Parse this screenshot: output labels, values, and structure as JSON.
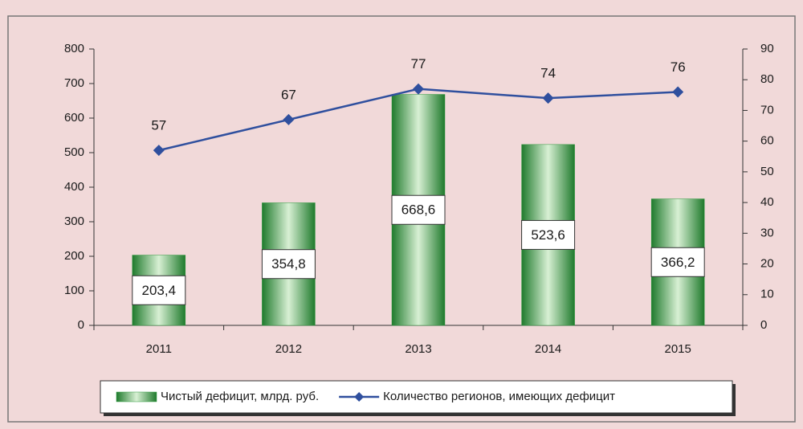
{
  "chart_data": {
    "type": "bar-line",
    "categories": [
      "2011",
      "2012",
      "2013",
      "2014",
      "2015"
    ],
    "series": [
      {
        "name": "Чистый дефицит, млрд. руб.",
        "type": "bar",
        "color": "#2e9a3e",
        "values": [
          203.4,
          354.8,
          668.6,
          523.6,
          366.2
        ],
        "value_labels": [
          "203,4",
          "354,8",
          "668,6",
          "523,6",
          "366,2"
        ]
      },
      {
        "name": "Количество регионов, имеющих дефицит",
        "type": "line",
        "axis": "y2",
        "color": "#2f4f9e",
        "values": [
          57,
          67,
          77,
          74,
          76
        ]
      }
    ],
    "ylim": [
      0,
      800
    ],
    "yticks": [
      0,
      100,
      200,
      300,
      400,
      500,
      600,
      700,
      800
    ],
    "y2lim": [
      0,
      90
    ],
    "y2ticks": [
      0,
      10,
      20,
      30,
      40,
      50,
      60,
      70,
      80,
      90
    ],
    "legend": "bottom"
  }
}
